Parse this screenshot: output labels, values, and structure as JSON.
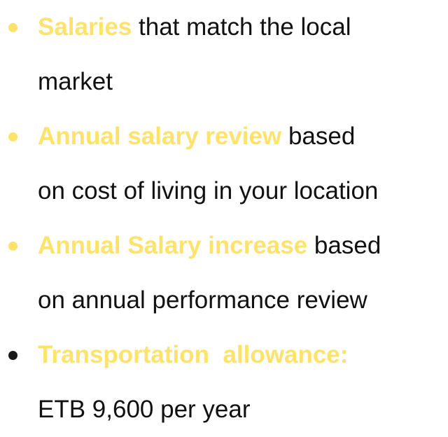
{
  "items": [
    {
      "highlight": "Salaries",
      "text": " that match the local",
      "continuation": "market",
      "bullet_color": "#fde36b",
      "highlight_color": "#fde36b"
    },
    {
      "highlight": "Annual salary review",
      "text": " based",
      "continuation": "on cost of living in your location",
      "bullet_color": "#fde36b",
      "highlight_color": "#fde36b"
    },
    {
      "highlight": "Annual Salary increase",
      "text": " based",
      "continuation": "on annual performance review",
      "bullet_color": "#fde36b",
      "highlight_color": "#fde36b"
    },
    {
      "highlight": "Transportation  allowance:",
      "text": "",
      "continuation": "ETB 9,600 per year",
      "bullet_color": "#1a1a1a",
      "highlight_color": "#fde36b"
    }
  ]
}
